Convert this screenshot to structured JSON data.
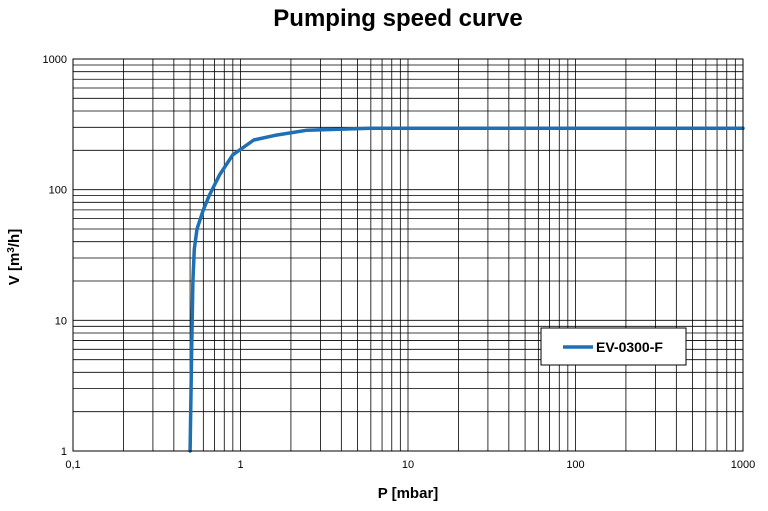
{
  "chart_data": {
    "type": "line",
    "title": "Pumping speed curve",
    "xlabel": "P [mbar]",
    "ylabel_main": "V [m",
    "ylabel_sup": "3",
    "ylabel_end": "/h]",
    "xscale": "log",
    "yscale": "log",
    "xlim": [
      0.1,
      1000
    ],
    "ylim": [
      1,
      1000
    ],
    "x_ticks": [
      {
        "value": 0.1,
        "label": "0,1"
      },
      {
        "value": 1,
        "label": "1"
      },
      {
        "value": 10,
        "label": "10"
      },
      {
        "value": 100,
        "label": "100"
      },
      {
        "value": 1000,
        "label": "1000"
      }
    ],
    "y_ticks": [
      {
        "value": 1,
        "label": "1"
      },
      {
        "value": 10,
        "label": "10"
      },
      {
        "value": 100,
        "label": "100"
      },
      {
        "value": 1000,
        "label": "1000"
      }
    ],
    "grid": true,
    "legend_position": "right",
    "series": [
      {
        "name": "EV-0300-F",
        "color": "#1f6fb5",
        "x": [
          0.5,
          0.51,
          0.52,
          0.53,
          0.55,
          0.6,
          0.65,
          0.75,
          0.9,
          1.2,
          1.6,
          2.5,
          6,
          20,
          100,
          1000
        ],
        "y": [
          1,
          5,
          20,
          35,
          50,
          70,
          90,
          130,
          185,
          240,
          260,
          285,
          295,
          295,
          295,
          295
        ]
      }
    ]
  }
}
